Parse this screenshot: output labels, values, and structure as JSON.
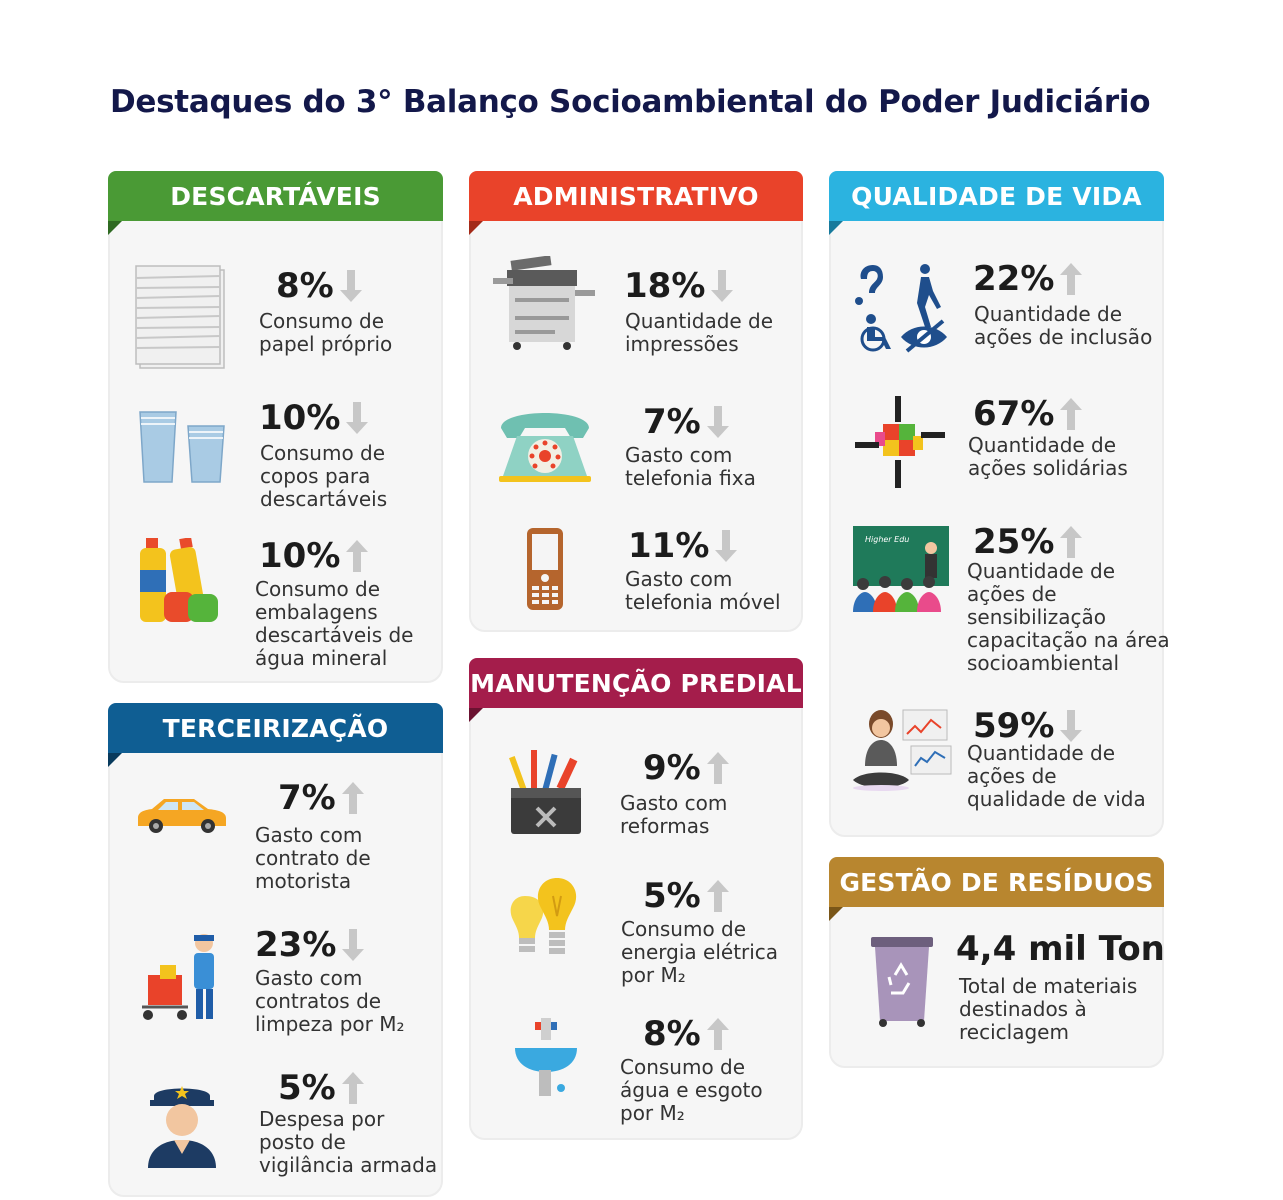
{
  "title": "Destaques do 3° Balanço Socioambiental do Poder Judiciário",
  "colors": {
    "descartaveis": "#4a9a35",
    "administrativo": "#e9432a",
    "qualidade": "#2bb3e0",
    "terceirizacao": "#0f5e93",
    "manutencao": "#a41d4b",
    "residuos": "#b8862f",
    "arrow": "#c7c7c7"
  },
  "sections": {
    "descartaveis": {
      "label": "DESCARTÁVEIS",
      "items": [
        {
          "icon": "paper-stack-icon",
          "value": "8%",
          "trend": "down",
          "lines": [
            "Consumo de",
            "papel próprio"
          ]
        },
        {
          "icon": "plastic-cups-icon",
          "value": "10%",
          "trend": "down",
          "lines": [
            "Consumo de",
            "copos para",
            "descartáveis"
          ]
        },
        {
          "icon": "water-bottles-icon",
          "value": "10%",
          "trend": "up",
          "lines": [
            "Consumo de",
            "embalagens",
            "descartáveis de",
            "água mineral"
          ]
        }
      ]
    },
    "administrativo": {
      "label": "ADMINISTRATIVO",
      "items": [
        {
          "icon": "copier-icon",
          "value": "18%",
          "trend": "down",
          "lines": [
            "Quantidade de",
            "impressões"
          ]
        },
        {
          "icon": "rotary-phone-icon",
          "value": "7%",
          "trend": "down",
          "lines": [
            "Gasto com",
            "telefonia fixa"
          ]
        },
        {
          "icon": "mobile-phone-icon",
          "value": "11%",
          "trend": "down",
          "lines": [
            "Gasto com",
            "telefonia móvel"
          ]
        }
      ]
    },
    "qualidade": {
      "label": "QUALIDADE DE VIDA",
      "items": [
        {
          "icon": "accessibility-icon",
          "value": "22%",
          "trend": "up",
          "lines": [
            "Quantidade de",
            "ações de inclusão"
          ]
        },
        {
          "icon": "puzzle-hands-icon",
          "value": "67%",
          "trend": "up",
          "lines": [
            "Quantidade de",
            "ações solidárias"
          ]
        },
        {
          "icon": "classroom-icon",
          "value": "25%",
          "trend": "up",
          "lines": [
            "Quantidade de",
            "ações de",
            "sensibilização",
            "capacitação na área",
            "socioambiental"
          ]
        },
        {
          "icon": "meditation-icon",
          "value": "59%",
          "trend": "down",
          "lines": [
            "Quantidade de",
            "ações de",
            "qualidade de vida"
          ]
        }
      ],
      "board_text": "Higher Edu"
    },
    "terceirizacao": {
      "label": "TERCEIRIZAÇÃO",
      "items": [
        {
          "icon": "car-icon",
          "value": "7%",
          "trend": "up",
          "lines": [
            "Gasto com",
            "contrato de",
            "motorista"
          ]
        },
        {
          "icon": "cleaner-icon",
          "value": "23%",
          "trend": "down",
          "lines": [
            "Gasto com",
            "contratos de",
            "limpeza por M₂"
          ]
        },
        {
          "icon": "guard-icon",
          "value": "5%",
          "trend": "up",
          "lines": [
            "Despesa por",
            "posto de",
            "vigilância armada"
          ]
        }
      ]
    },
    "manutencao": {
      "label": "MANUTENÇÃO PREDIAL",
      "items": [
        {
          "icon": "toolbox-icon",
          "value": "9%",
          "trend": "up",
          "lines": [
            "Gasto com",
            "reformas"
          ]
        },
        {
          "icon": "light-bulbs-icon",
          "value": "5%",
          "trend": "up",
          "lines": [
            "Consumo de",
            "energia elétrica",
            "por M₂"
          ]
        },
        {
          "icon": "sink-faucet-icon",
          "value": "8%",
          "trend": "up",
          "lines": [
            "Consumo de",
            "água e esgoto",
            "por M₂"
          ]
        }
      ]
    },
    "residuos": {
      "label": "GESTÃO DE RESÍDUOS",
      "items": [
        {
          "icon": "recycle-bin-icon",
          "value": "4,4 mil Ton",
          "lines": [
            "Total de materiais",
            "destinados à",
            "reciclagem"
          ]
        }
      ]
    }
  }
}
